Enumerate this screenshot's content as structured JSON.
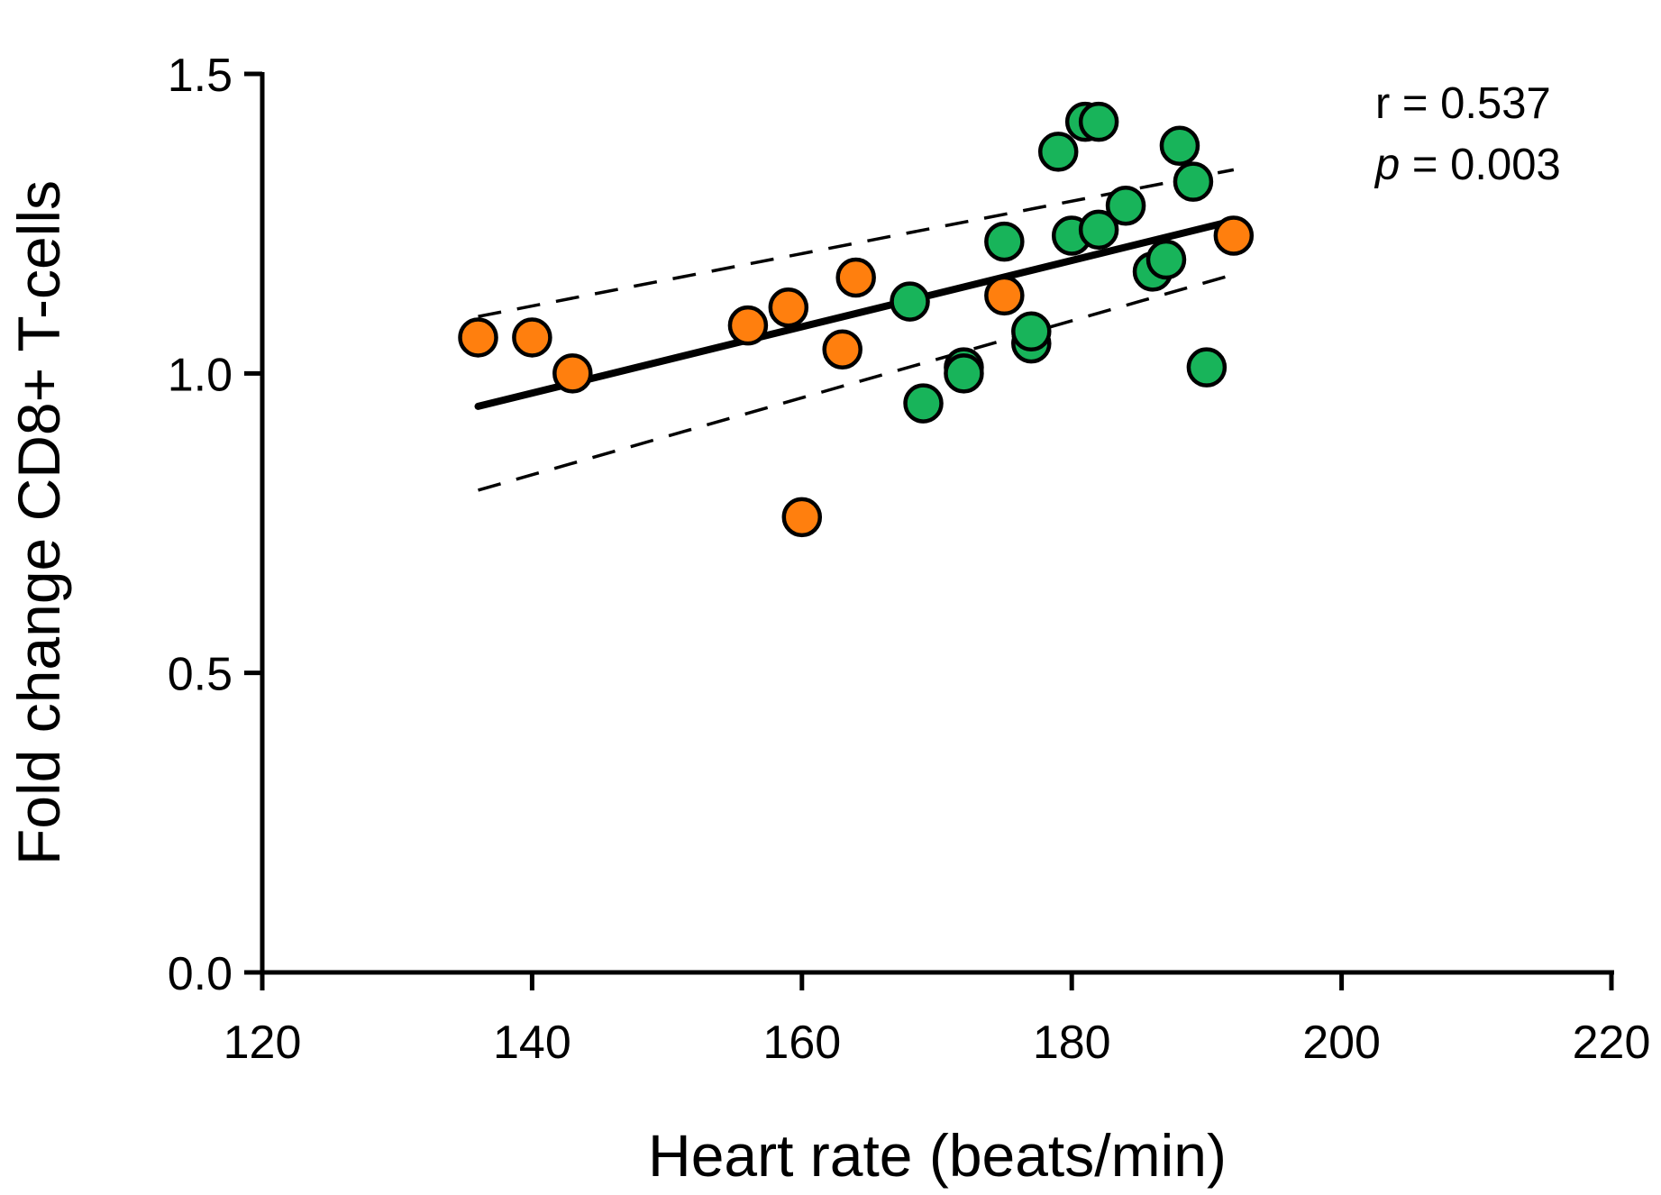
{
  "chart_data": {
    "type": "scatter",
    "title": "",
    "xlabel": "Heart rate (beats/min)",
    "ylabel": "Fold change CD8+ T-cells",
    "xlim": [
      120,
      220
    ],
    "ylim": [
      0.0,
      1.5
    ],
    "x_ticks": [
      120,
      140,
      160,
      180,
      200,
      220
    ],
    "x_tick_labels": [
      "120",
      "140",
      "160",
      "180",
      "200",
      "220"
    ],
    "y_ticks": [
      0.0,
      0.5,
      1.0,
      1.5
    ],
    "y_tick_labels": [
      "0.0",
      "0.5",
      "1.0",
      "1.5"
    ],
    "grid": false,
    "legend": "none",
    "colors": {
      "orange": "#ff7f0e",
      "green": "#18b45a",
      "outline": "#000000"
    },
    "series": [
      {
        "color": "#ff7f0e",
        "points": [
          {
            "x": 136,
            "y": 1.06
          },
          {
            "x": 140,
            "y": 1.06
          },
          {
            "x": 143,
            "y": 1.0
          },
          {
            "x": 156,
            "y": 1.08
          },
          {
            "x": 159,
            "y": 1.11
          },
          {
            "x": 160,
            "y": 0.76
          },
          {
            "x": 163,
            "y": 1.04
          },
          {
            "x": 164,
            "y": 1.16
          },
          {
            "x": 175,
            "y": 1.13
          },
          {
            "x": 192,
            "y": 1.23
          }
        ]
      },
      {
        "color": "#18b45a",
        "points": [
          {
            "x": 168,
            "y": 1.12
          },
          {
            "x": 169,
            "y": 0.95
          },
          {
            "x": 172,
            "y": 1.01
          },
          {
            "x": 172,
            "y": 1.0
          },
          {
            "x": 175,
            "y": 1.22
          },
          {
            "x": 177,
            "y": 1.05
          },
          {
            "x": 177,
            "y": 1.07
          },
          {
            "x": 179,
            "y": 1.37
          },
          {
            "x": 180,
            "y": 1.23
          },
          {
            "x": 181,
            "y": 1.42
          },
          {
            "x": 182,
            "y": 1.42
          },
          {
            "x": 182,
            "y": 1.24
          },
          {
            "x": 184,
            "y": 1.28
          },
          {
            "x": 186,
            "y": 1.17
          },
          {
            "x": 187,
            "y": 1.19
          },
          {
            "x": 188,
            "y": 1.38
          },
          {
            "x": 189,
            "y": 1.32
          },
          {
            "x": 190,
            "y": 1.01
          }
        ]
      }
    ],
    "regression": {
      "x": [
        136,
        192
      ],
      "y": [
        0.945,
        1.255
      ]
    },
    "confidence_band": {
      "upper": {
        "x": [
          136,
          192
        ],
        "y": [
          1.095,
          1.34
        ]
      },
      "lower": {
        "x": [
          136,
          192
        ],
        "y": [
          0.805,
          1.165
        ]
      }
    },
    "annotations": {
      "r_text": "r = 0.537",
      "p_symbol": "p",
      "p_text": " = 0.003"
    }
  }
}
